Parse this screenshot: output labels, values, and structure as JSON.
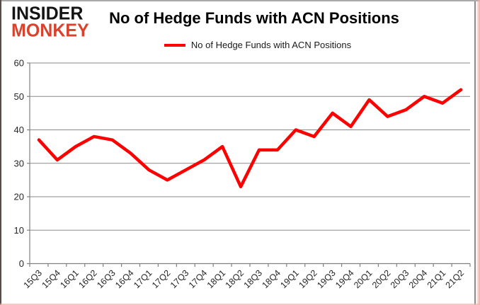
{
  "logo": {
    "line1": "INSIDER",
    "line2": "MONKEY"
  },
  "title": "No of Hedge Funds with ACN Positions",
  "legend": {
    "label": "No of Hedge Funds with ACN Positions"
  },
  "colors": {
    "series": "#ff0000",
    "grid": "#8a8a8a",
    "axis": "#808080",
    "axis_text": "#262626",
    "logo_black": "#141414",
    "logo_red": "#d9432e"
  },
  "chart_data": {
    "type": "line",
    "title": "No of Hedge Funds with ACN Positions",
    "xlabel": "",
    "ylabel": "",
    "categories": [
      "15Q3",
      "15Q4",
      "16Q1",
      "16Q2",
      "16Q3",
      "16Q4",
      "17Q1",
      "17Q2",
      "17Q3",
      "17Q4",
      "18Q1",
      "18Q2",
      "18Q3",
      "18Q4",
      "19Q1",
      "19Q2",
      "19Q3",
      "19Q4",
      "20Q1",
      "20Q2",
      "20Q3",
      "20Q4",
      "21Q1",
      "21Q2"
    ],
    "series": [
      {
        "name": "No of Hedge Funds with ACN Positions",
        "color": "#ff0000",
        "values": [
          37,
          31,
          35,
          38,
          37,
          33,
          28,
          25,
          28,
          31,
          35,
          23,
          34,
          34,
          40,
          38,
          45,
          41,
          49,
          44,
          46,
          50,
          48,
          52
        ]
      }
    ],
    "ylim": [
      0,
      60
    ],
    "yticks": [
      0,
      10,
      20,
      30,
      40,
      50,
      60
    ],
    "grid": true,
    "legend_position": "top"
  }
}
